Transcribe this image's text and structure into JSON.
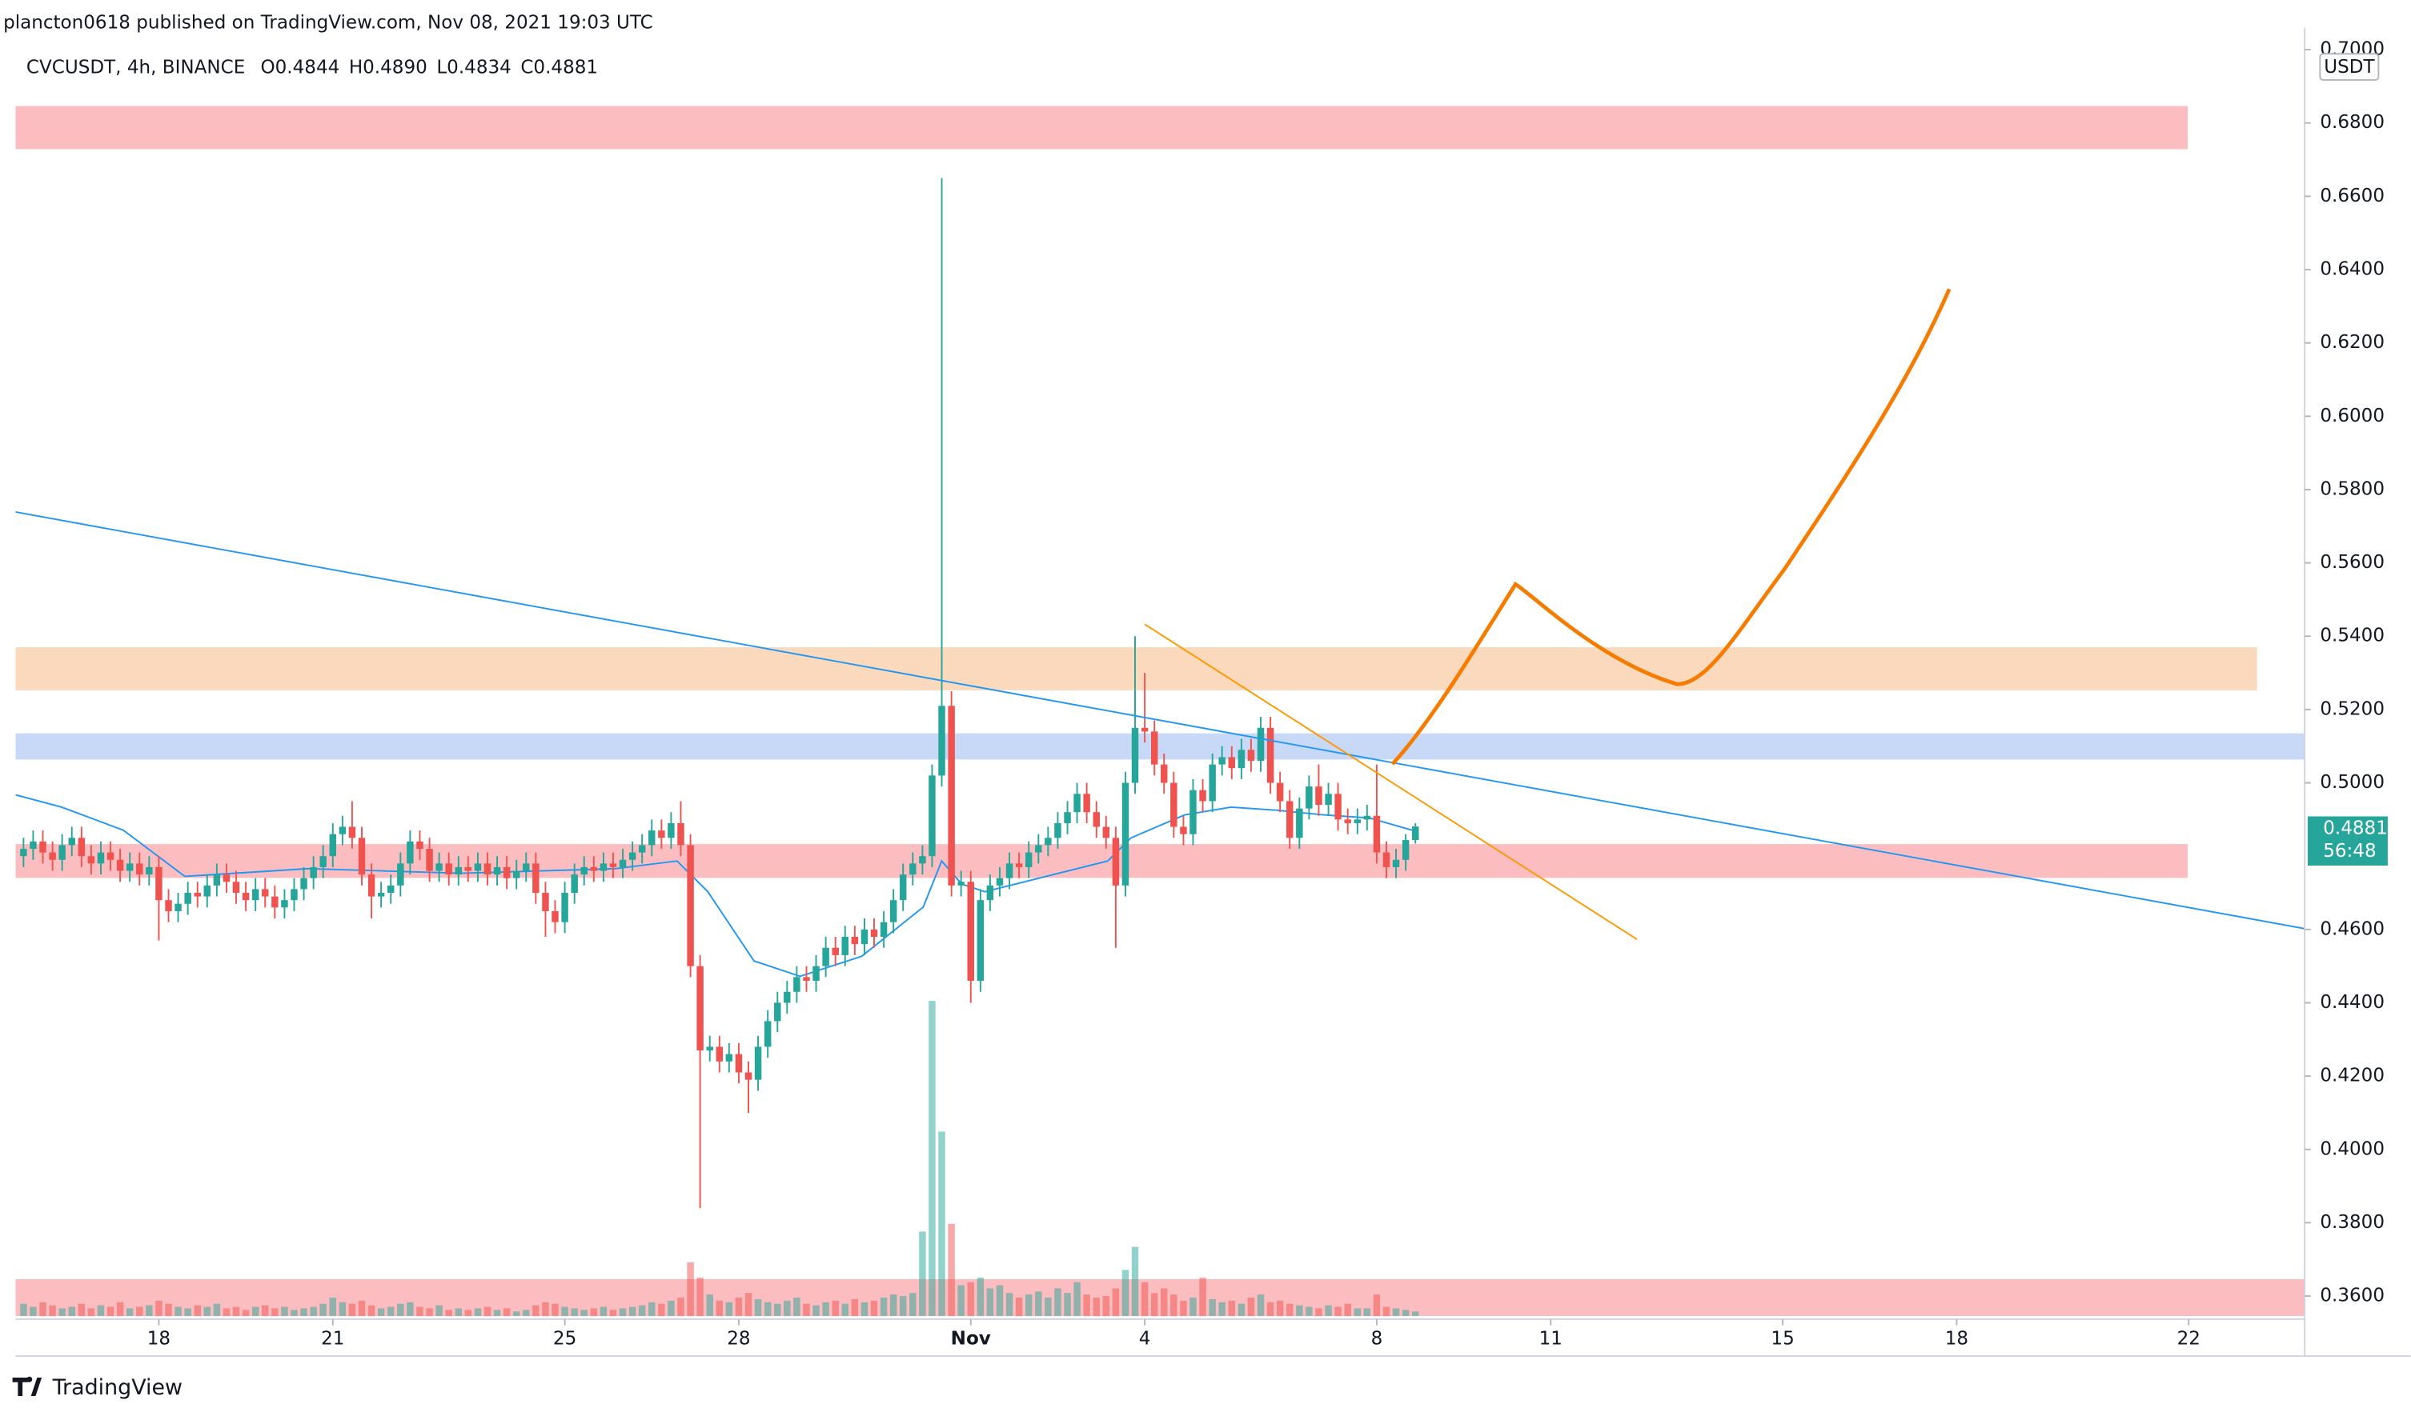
{
  "header": "plancton0618 published on TradingView.com, Nov 08, 2021 19:03 UTC",
  "footer": "TradingView",
  "chart_data": {
    "type": "candlestick",
    "symbol": "CVCUSDT, 4h, BINANCE",
    "ohlc_labels": [
      "O0.4844",
      "H0.4890",
      "L0.4834",
      "C0.4881"
    ],
    "currency": "USDT",
    "price_tag": "0.4881",
    "countdown": "56:48",
    "up_color": "#26a69a",
    "down_color": "#ef5350",
    "ylim": [
      0.3537,
      0.706
    ],
    "yticks": [
      {
        "value": 0.7,
        "label": "0.7000"
      },
      {
        "value": 0.68,
        "label": "0.6800"
      },
      {
        "value": 0.66,
        "label": "0.6600"
      },
      {
        "value": 0.64,
        "label": "0.6400"
      },
      {
        "value": 0.62,
        "label": "0.6200"
      },
      {
        "value": 0.6,
        "label": "0.6000"
      },
      {
        "value": 0.58,
        "label": "0.5800"
      },
      {
        "value": 0.56,
        "label": "0.5600"
      },
      {
        "value": 0.54,
        "label": "0.5400"
      },
      {
        "value": 0.52,
        "label": "0.5200"
      },
      {
        "value": 0.5,
        "label": "0.5000"
      },
      {
        "value": 0.46,
        "label": "0.4600"
      },
      {
        "value": 0.44,
        "label": "0.4400"
      },
      {
        "value": 0.42,
        "label": "0.4200"
      },
      {
        "value": 0.4,
        "label": "0.4000"
      },
      {
        "value": 0.38,
        "label": "0.3800"
      },
      {
        "value": 0.36,
        "label": "0.3600"
      }
    ],
    "xlim": [
      15.53,
      55.0
    ],
    "xticks": [
      18,
      21,
      25,
      28,
      {
        "value": 32,
        "label": "Nov"
      },
      {
        "value": 35,
        "label": "4"
      },
      {
        "value": 39,
        "label": "8"
      },
      {
        "value": 42,
        "label": "11"
      },
      {
        "value": 46,
        "label": "15"
      },
      {
        "value": 49,
        "label": "18"
      },
      {
        "value": 53,
        "label": "22"
      }
    ],
    "x": [
      15.667,
      15.833,
      16,
      16.167,
      16.333,
      16.5,
      16.667,
      16.833,
      17,
      17.167,
      17.333,
      17.5,
      17.667,
      17.833,
      18,
      18.167,
      18.333,
      18.5,
      18.667,
      18.833,
      19,
      19.167,
      19.333,
      19.5,
      19.667,
      19.833,
      20,
      20.167,
      20.333,
      20.5,
      20.667,
      20.833,
      21,
      21.167,
      21.333,
      21.5,
      21.667,
      21.833,
      22,
      22.167,
      22.333,
      22.5,
      22.667,
      22.833,
      23,
      23.167,
      23.333,
      23.5,
      23.667,
      23.833,
      24,
      24.167,
      24.333,
      24.5,
      24.667,
      24.833,
      25,
      25.167,
      25.333,
      25.5,
      25.667,
      25.833,
      26,
      26.167,
      26.333,
      26.5,
      26.667,
      26.833,
      27,
      27.167,
      27.333,
      27.5,
      27.667,
      27.833,
      28,
      28.167,
      28.333,
      28.5,
      28.667,
      28.833,
      29,
      29.167,
      29.333,
      29.5,
      29.667,
      29.833,
      30,
      30.167,
      30.333,
      30.5,
      30.667,
      30.833,
      31,
      31.167,
      31.333,
      31.5,
      31.667,
      31.833,
      32,
      32.167,
      32.333,
      32.5,
      32.667,
      32.833,
      33,
      33.167,
      33.333,
      33.5,
      33.667,
      33.833,
      34,
      34.167,
      34.333,
      34.5,
      34.667,
      34.833,
      35,
      35.167,
      35.333,
      35.5,
      35.667,
      35.833,
      36,
      36.167,
      36.333,
      36.5,
      36.667,
      36.833,
      37,
      37.167,
      37.333,
      37.5,
      37.667,
      37.833,
      38,
      38.167,
      38.333,
      38.5,
      38.667,
      38.833,
      39,
      39.167,
      39.333,
      39.5,
      39.667
    ],
    "ohlc": [
      [
        0.48,
        0.485,
        0.477,
        0.482
      ],
      [
        0.482,
        0.487,
        0.479,
        0.484
      ],
      [
        0.484,
        0.487,
        0.478,
        0.481
      ],
      [
        0.481,
        0.484,
        0.476,
        0.479
      ],
      [
        0.479,
        0.486,
        0.476,
        0.483
      ],
      [
        0.483,
        0.488,
        0.48,
        0.485
      ],
      [
        0.485,
        0.488,
        0.477,
        0.48
      ],
      [
        0.48,
        0.483,
        0.475,
        0.478
      ],
      [
        0.478,
        0.484,
        0.475,
        0.481
      ],
      [
        0.481,
        0.484,
        0.476,
        0.479
      ],
      [
        0.479,
        0.482,
        0.473,
        0.476
      ],
      [
        0.476,
        0.481,
        0.473,
        0.478
      ],
      [
        0.478,
        0.481,
        0.472,
        0.475
      ],
      [
        0.475,
        0.48,
        0.472,
        0.477
      ],
      [
        0.477,
        0.48,
        0.457,
        0.468
      ],
      [
        0.468,
        0.471,
        0.462,
        0.465
      ],
      [
        0.465,
        0.47,
        0.462,
        0.467
      ],
      [
        0.467,
        0.473,
        0.464,
        0.47
      ],
      [
        0.47,
        0.473,
        0.466,
        0.469
      ],
      [
        0.469,
        0.475,
        0.466,
        0.472
      ],
      [
        0.472,
        0.478,
        0.469,
        0.475
      ],
      [
        0.475,
        0.478,
        0.47,
        0.473
      ],
      [
        0.473,
        0.476,
        0.467,
        0.47
      ],
      [
        0.47,
        0.473,
        0.465,
        0.468
      ],
      [
        0.468,
        0.474,
        0.465,
        0.471
      ],
      [
        0.471,
        0.474,
        0.466,
        0.469
      ],
      [
        0.469,
        0.472,
        0.463,
        0.466
      ],
      [
        0.466,
        0.471,
        0.463,
        0.468
      ],
      [
        0.468,
        0.474,
        0.465,
        0.471
      ],
      [
        0.471,
        0.477,
        0.468,
        0.474
      ],
      [
        0.474,
        0.48,
        0.471,
        0.477
      ],
      [
        0.477,
        0.483,
        0.474,
        0.48
      ],
      [
        0.48,
        0.489,
        0.477,
        0.486
      ],
      [
        0.486,
        0.491,
        0.483,
        0.488
      ],
      [
        0.488,
        0.495,
        0.482,
        0.485
      ],
      [
        0.485,
        0.488,
        0.472,
        0.475
      ],
      [
        0.475,
        0.478,
        0.463,
        0.469
      ],
      [
        0.469,
        0.473,
        0.466,
        0.47
      ],
      [
        0.47,
        0.475,
        0.467,
        0.472
      ],
      [
        0.472,
        0.481,
        0.469,
        0.478
      ],
      [
        0.478,
        0.487,
        0.475,
        0.484
      ],
      [
        0.484,
        0.487,
        0.479,
        0.482
      ],
      [
        0.482,
        0.485,
        0.473,
        0.476
      ],
      [
        0.476,
        0.481,
        0.473,
        0.478
      ],
      [
        0.478,
        0.481,
        0.472,
        0.475
      ],
      [
        0.475,
        0.48,
        0.472,
        0.477
      ],
      [
        0.477,
        0.48,
        0.473,
        0.476
      ],
      [
        0.476,
        0.481,
        0.473,
        0.478
      ],
      [
        0.478,
        0.481,
        0.472,
        0.475
      ],
      [
        0.475,
        0.48,
        0.472,
        0.477
      ],
      [
        0.477,
        0.48,
        0.471,
        0.474
      ],
      [
        0.474,
        0.479,
        0.471,
        0.476
      ],
      [
        0.476,
        0.481,
        0.473,
        0.478
      ],
      [
        0.478,
        0.481,
        0.467,
        0.47
      ],
      [
        0.47,
        0.473,
        0.458,
        0.465
      ],
      [
        0.465,
        0.468,
        0.459,
        0.462
      ],
      [
        0.462,
        0.473,
        0.459,
        0.47
      ],
      [
        0.47,
        0.478,
        0.467,
        0.475
      ],
      [
        0.475,
        0.48,
        0.472,
        0.477
      ],
      [
        0.477,
        0.48,
        0.473,
        0.476
      ],
      [
        0.476,
        0.481,
        0.473,
        0.478
      ],
      [
        0.478,
        0.481,
        0.474,
        0.477
      ],
      [
        0.477,
        0.482,
        0.474,
        0.479
      ],
      [
        0.479,
        0.484,
        0.476,
        0.481
      ],
      [
        0.481,
        0.486,
        0.478,
        0.483
      ],
      [
        0.483,
        0.49,
        0.48,
        0.487
      ],
      [
        0.487,
        0.49,
        0.482,
        0.485
      ],
      [
        0.485,
        0.492,
        0.482,
        0.489
      ],
      [
        0.489,
        0.495,
        0.48,
        0.483
      ],
      [
        0.483,
        0.486,
        0.447,
        0.45
      ],
      [
        0.45,
        0.453,
        0.384,
        0.427
      ],
      [
        0.427,
        0.431,
        0.424,
        0.428
      ],
      [
        0.428,
        0.431,
        0.421,
        0.424
      ],
      [
        0.424,
        0.429,
        0.421,
        0.426
      ],
      [
        0.426,
        0.429,
        0.418,
        0.421
      ],
      [
        0.421,
        0.424,
        0.41,
        0.419
      ],
      [
        0.419,
        0.431,
        0.416,
        0.428
      ],
      [
        0.428,
        0.438,
        0.425,
        0.435
      ],
      [
        0.435,
        0.443,
        0.432,
        0.44
      ],
      [
        0.44,
        0.446,
        0.437,
        0.443
      ],
      [
        0.443,
        0.45,
        0.44,
        0.447
      ],
      [
        0.447,
        0.45,
        0.443,
        0.446
      ],
      [
        0.446,
        0.453,
        0.443,
        0.45
      ],
      [
        0.45,
        0.458,
        0.447,
        0.455
      ],
      [
        0.455,
        0.458,
        0.45,
        0.453
      ],
      [
        0.453,
        0.461,
        0.45,
        0.458
      ],
      [
        0.458,
        0.461,
        0.453,
        0.456
      ],
      [
        0.456,
        0.463,
        0.453,
        0.46
      ],
      [
        0.46,
        0.463,
        0.455,
        0.458
      ],
      [
        0.458,
        0.465,
        0.455,
        0.462
      ],
      [
        0.462,
        0.471,
        0.459,
        0.468
      ],
      [
        0.468,
        0.478,
        0.465,
        0.475
      ],
      [
        0.475,
        0.481,
        0.472,
        0.478
      ],
      [
        0.478,
        0.483,
        0.475,
        0.48
      ],
      [
        0.48,
        0.505,
        0.477,
        0.502
      ],
      [
        0.502,
        0.665,
        0.499,
        0.521
      ],
      [
        0.521,
        0.525,
        0.469,
        0.472
      ],
      [
        0.472,
        0.476,
        0.469,
        0.473
      ],
      [
        0.473,
        0.476,
        0.44,
        0.446
      ],
      [
        0.446,
        0.471,
        0.443,
        0.468
      ],
      [
        0.468,
        0.475,
        0.465,
        0.472
      ],
      [
        0.472,
        0.477,
        0.469,
        0.474
      ],
      [
        0.474,
        0.481,
        0.471,
        0.478
      ],
      [
        0.478,
        0.481,
        0.474,
        0.477
      ],
      [
        0.477,
        0.484,
        0.474,
        0.481
      ],
      [
        0.481,
        0.486,
        0.478,
        0.483
      ],
      [
        0.483,
        0.488,
        0.48,
        0.485
      ],
      [
        0.485,
        0.492,
        0.482,
        0.489
      ],
      [
        0.489,
        0.495,
        0.486,
        0.492
      ],
      [
        0.492,
        0.5,
        0.489,
        0.497
      ],
      [
        0.497,
        0.5,
        0.489,
        0.492
      ],
      [
        0.492,
        0.495,
        0.485,
        0.488
      ],
      [
        0.488,
        0.491,
        0.482,
        0.485
      ],
      [
        0.485,
        0.488,
        0.455,
        0.472
      ],
      [
        0.472,
        0.503,
        0.469,
        0.5
      ],
      [
        0.5,
        0.54,
        0.497,
        0.515
      ],
      [
        0.515,
        0.53,
        0.511,
        0.514
      ],
      [
        0.514,
        0.517,
        0.502,
        0.505
      ],
      [
        0.505,
        0.508,
        0.497,
        0.5
      ],
      [
        0.5,
        0.503,
        0.485,
        0.488
      ],
      [
        0.488,
        0.491,
        0.483,
        0.486
      ],
      [
        0.486,
        0.501,
        0.483,
        0.498
      ],
      [
        0.498,
        0.501,
        0.492,
        0.495
      ],
      [
        0.495,
        0.508,
        0.492,
        0.505
      ],
      [
        0.505,
        0.51,
        0.502,
        0.507
      ],
      [
        0.507,
        0.51,
        0.501,
        0.504
      ],
      [
        0.504,
        0.512,
        0.501,
        0.509
      ],
      [
        0.509,
        0.512,
        0.503,
        0.506
      ],
      [
        0.506,
        0.518,
        0.503,
        0.515
      ],
      [
        0.515,
        0.518,
        0.497,
        0.5
      ],
      [
        0.5,
        0.503,
        0.492,
        0.495
      ],
      [
        0.495,
        0.498,
        0.482,
        0.485
      ],
      [
        0.485,
        0.496,
        0.482,
        0.493
      ],
      [
        0.493,
        0.502,
        0.49,
        0.499
      ],
      [
        0.499,
        0.505,
        0.491,
        0.494
      ],
      [
        0.494,
        0.5,
        0.491,
        0.497
      ],
      [
        0.497,
        0.5,
        0.487,
        0.49
      ],
      [
        0.49,
        0.493,
        0.486,
        0.489
      ],
      [
        0.489,
        0.493,
        0.486,
        0.49
      ],
      [
        0.49,
        0.494,
        0.487,
        0.491
      ],
      [
        0.491,
        0.505,
        0.478,
        0.481
      ],
      [
        0.481,
        0.484,
        0.474,
        0.477
      ],
      [
        0.477,
        0.482,
        0.474,
        0.479
      ],
      [
        0.479,
        0.486,
        0.476,
        0.4844
      ],
      [
        0.4844,
        0.489,
        0.4834,
        0.4881
      ]
    ],
    "volume": [
      8,
      6,
      9,
      7,
      5,
      6,
      8,
      5,
      7,
      6,
      9,
      5,
      6,
      7,
      10,
      8,
      6,
      5,
      7,
      6,
      8,
      5,
      6,
      4,
      6,
      7,
      5,
      6,
      4,
      5,
      6,
      8,
      12,
      9,
      8,
      10,
      7,
      5,
      6,
      8,
      9,
      6,
      5,
      7,
      4,
      5,
      4,
      5,
      6,
      4,
      5,
      3,
      4,
      7,
      9,
      8,
      6,
      5,
      4,
      5,
      6,
      4,
      5,
      6,
      7,
      9,
      8,
      10,
      12,
      35,
      25,
      14,
      10,
      9,
      12,
      15,
      11,
      9,
      8,
      10,
      12,
      8,
      7,
      9,
      10,
      8,
      11,
      9,
      10,
      12,
      14,
      13,
      15,
      55,
      205,
      120,
      60,
      20,
      22,
      25,
      18,
      20,
      15,
      12,
      14,
      16,
      12,
      18,
      15,
      22,
      14,
      12,
      13,
      18,
      30,
      45,
      22,
      15,
      18,
      14,
      10,
      12,
      25,
      11,
      9,
      10,
      8,
      12,
      14,
      9,
      10,
      8,
      7,
      6,
      5,
      7,
      6,
      8,
      5,
      5,
      14,
      6,
      5,
      4,
      3
    ]
  }
}
